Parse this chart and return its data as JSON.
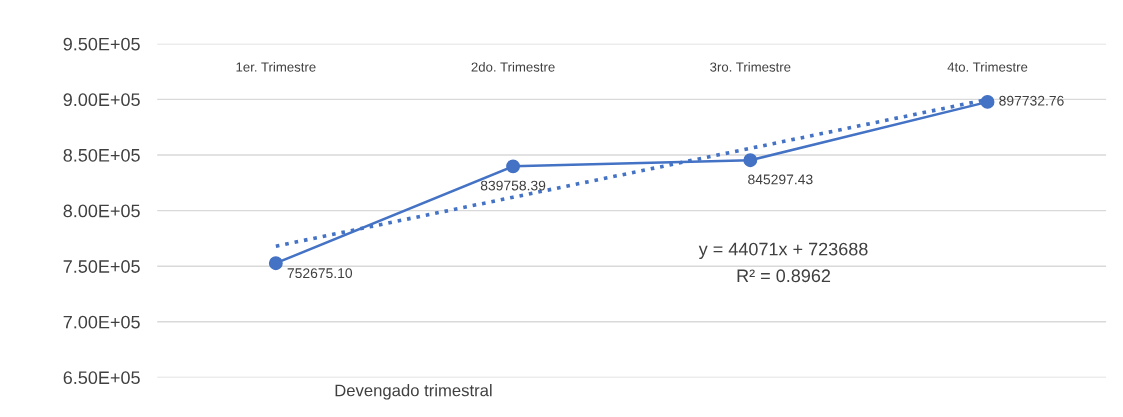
{
  "chart_data": {
    "type": "line",
    "categories": [
      "1er. Trimestre",
      "2do. Trimestre",
      "3ro. Trimestre",
      "4to. Trimestre"
    ],
    "xlabel": "Devengado trimestral",
    "series": [
      {
        "color": "#4472c4",
        "values": [
          752675.1,
          839758.39,
          845297.43,
          897732.76
        ],
        "value_labels": [
          "752675.10",
          "839758.39",
          "845297.43",
          "897732.76"
        ],
        "marker": "circle",
        "line_style": "solid"
      },
      {
        "type": "line",
        "color": "#4472c4",
        "values": [
          768000,
          812000,
          856000,
          900000
        ],
        "marker": "none",
        "line_style": "dotted"
      }
    ],
    "ylim": [
      650000,
      950000
    ],
    "yticks": [
      {
        "value": 650000,
        "label": "6.50E+05"
      },
      {
        "value": 700000,
        "label": "7.00E+05"
      },
      {
        "value": 750000,
        "label": "7.50E+05"
      },
      {
        "value": 800000,
        "label": "8.00E+05"
      },
      {
        "value": 850000,
        "label": "8.50E+05"
      },
      {
        "value": 900000,
        "label": "9.00E+05"
      },
      {
        "value": 950000,
        "label": "9.50E+05"
      }
    ],
    "grid": "y",
    "annotations": [
      "y = 44071x + 723688",
      "R² = 0.8962"
    ]
  }
}
